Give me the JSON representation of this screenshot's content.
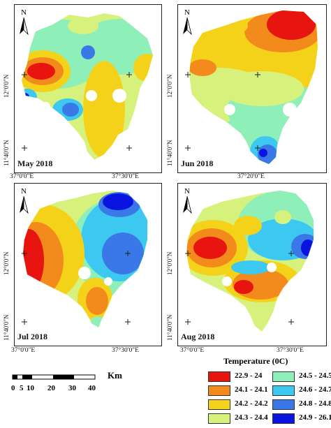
{
  "north_label": "N",
  "panels": [
    {
      "label": "May 2018"
    },
    {
      "label": "Jun 2018"
    },
    {
      "label": "Jul 2018"
    },
    {
      "label": "Aug 2018"
    }
  ],
  "axis_labels": {
    "lat_top_row_upper": "12°0'0\"N",
    "lat_top_row_lower": "11°40'0\"N",
    "lat_bottom_row_upper": "12°0'0\"N",
    "lat_bottom_row_lower": "11°40'0\"N",
    "lon_row1_left": "37°0'0\"E",
    "lon_row1_right": "37°30'0\"E",
    "lon_row2_left": "37°0'0\"E",
    "lon_row2_right": "37°30'0\"E",
    "lon_jun_lower": "37°20'0\"E"
  },
  "scale_bar": {
    "unit": "Km",
    "ticks": [
      "0",
      "5",
      "10",
      "20",
      "30",
      "40"
    ]
  },
  "legend": {
    "title": "Temperature (0C)",
    "items": [
      {
        "label": "22.9 - 24",
        "color": "#e8140f"
      },
      {
        "label": "24.1 - 24.1",
        "color": "#f28a1c"
      },
      {
        "label": "24.2 - 24.2",
        "color": "#f5d21a"
      },
      {
        "label": "24.3 - 24.4",
        "color": "#d7f27c"
      },
      {
        "label": "24.5 - 24.5",
        "color": "#8ef0b8"
      },
      {
        "label": "24.6 - 24.7",
        "color": "#3cc8f0"
      },
      {
        "label": "24.8 - 24.8",
        "color": "#3a78e8"
      },
      {
        "label": "24.9 - 26.1",
        "color": "#0a14e0"
      }
    ]
  }
}
